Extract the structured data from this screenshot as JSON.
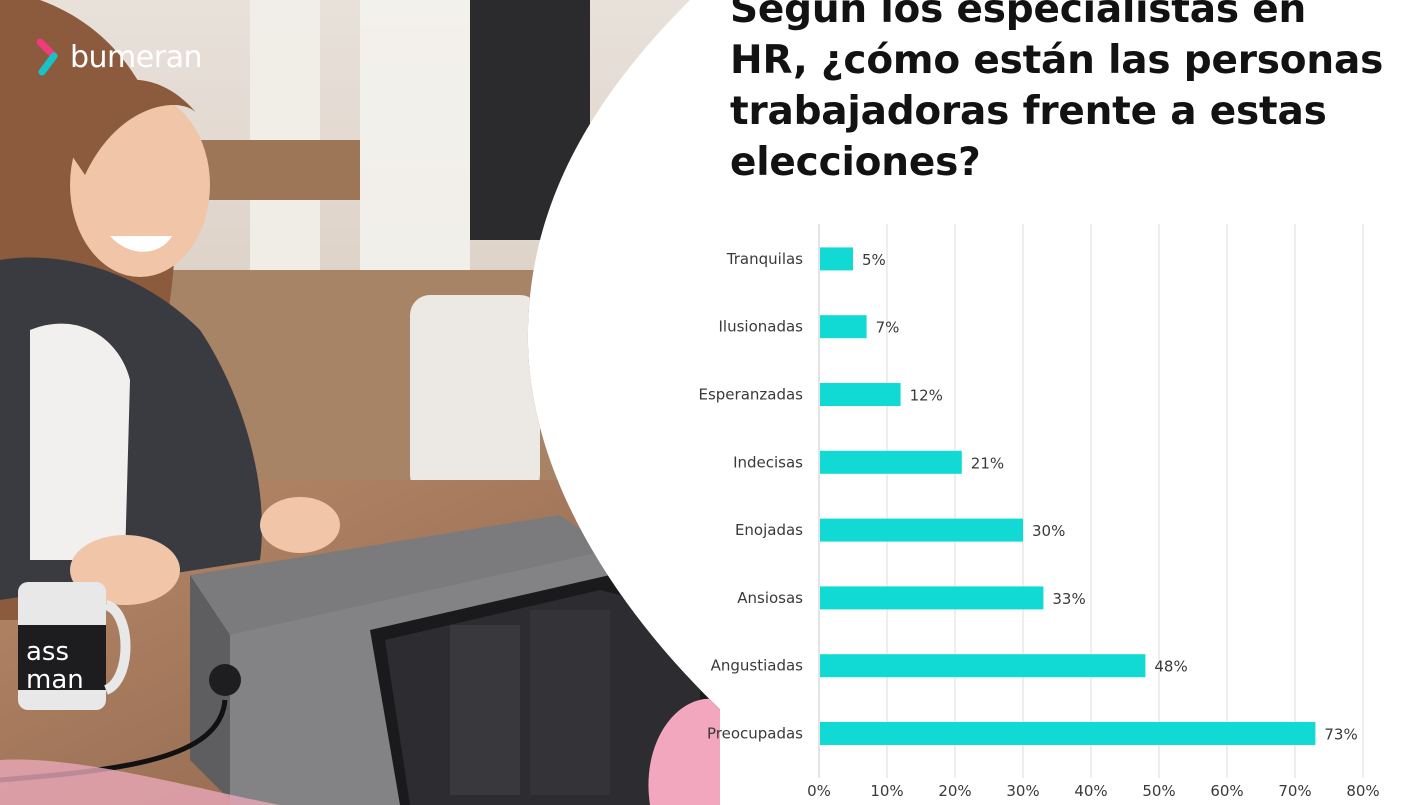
{
  "brand": {
    "logo_text": "bumeran",
    "accent_pink": "#f23a7d",
    "accent_teal": "#16c4c8"
  },
  "title": "Según los especialistas en HR, ¿cómo están las personas trabajadoras frente a estas elecciones?",
  "chart_data": {
    "type": "bar",
    "orientation": "horizontal",
    "categories": [
      "Tranquilas",
      "Ilusionadas",
      "Esperanzadas",
      "Indecisas",
      "Enojadas",
      "Ansiosas",
      "Angustiadas",
      "Preocupadas"
    ],
    "values": [
      5,
      7,
      12,
      21,
      30,
      33,
      48,
      73
    ],
    "value_labels": [
      "5%",
      "7%",
      "12%",
      "21%",
      "30%",
      "33%",
      "48%",
      "73%"
    ],
    "xlim": [
      0,
      80
    ],
    "x_ticks": [
      "0%",
      "10%",
      "20%",
      "30%",
      "40%",
      "50%",
      "60%",
      "70%",
      "80%"
    ],
    "bar_color": "#10dad3",
    "grid": "vertical",
    "legend": "none"
  }
}
